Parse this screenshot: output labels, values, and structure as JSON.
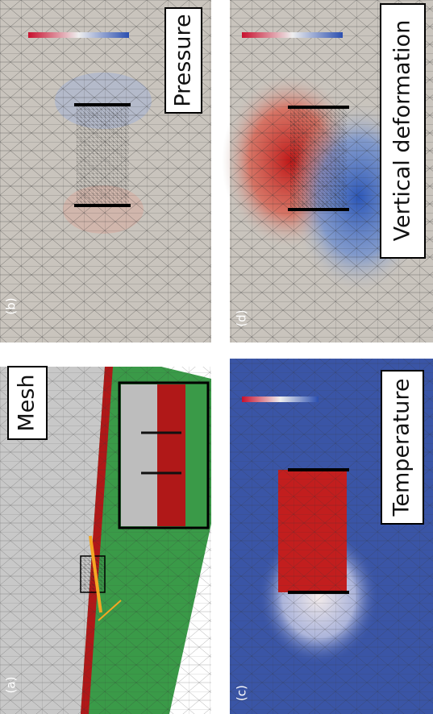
{
  "panels": [
    {
      "label": "(a)",
      "title": "Mesh"
    },
    {
      "label": "(b)",
      "title": "Pressure"
    },
    {
      "label": "(c)",
      "title": "Temperature"
    },
    {
      "label": "(d)",
      "title": "Vertical deformation"
    }
  ]
}
